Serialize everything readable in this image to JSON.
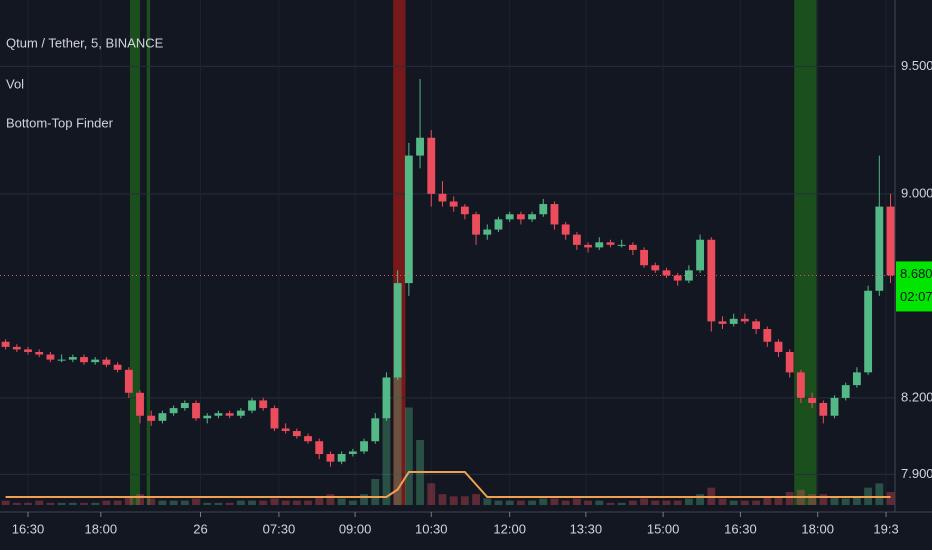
{
  "chart_data": {
    "type": "candlestick",
    "legend": [
      "Qtum / Tether, 5, BINANCE",
      "Vol",
      "Bottom-Top Finder"
    ],
    "up_color": "#53b987",
    "down_color": "#eb4d5c",
    "candles": [
      [
        8.42,
        8.43,
        8.39,
        8.4
      ],
      [
        8.4,
        8.41,
        8.38,
        8.39
      ],
      [
        8.39,
        8.4,
        8.37,
        8.38
      ],
      [
        8.38,
        8.39,
        8.36,
        8.37
      ],
      [
        8.37,
        8.38,
        8.34,
        8.35
      ],
      [
        8.35,
        8.37,
        8.34,
        8.35
      ],
      [
        8.35,
        8.37,
        8.34,
        8.36
      ],
      [
        8.36,
        8.37,
        8.33,
        8.34
      ],
      [
        8.34,
        8.36,
        8.33,
        8.35
      ],
      [
        8.35,
        8.36,
        8.32,
        8.33
      ],
      [
        8.33,
        8.34,
        8.3,
        8.31
      ],
      [
        8.31,
        8.32,
        8.2,
        8.22
      ],
      [
        8.22,
        8.23,
        8.1,
        8.13
      ],
      [
        8.13,
        8.15,
        8.09,
        8.11
      ],
      [
        8.11,
        8.15,
        8.1,
        8.14
      ],
      [
        8.14,
        8.17,
        8.13,
        8.16
      ],
      [
        8.16,
        8.19,
        8.15,
        8.18
      ],
      [
        8.18,
        8.19,
        8.11,
        8.12
      ],
      [
        8.12,
        8.14,
        8.1,
        8.13
      ],
      [
        8.13,
        8.15,
        8.12,
        8.14
      ],
      [
        8.14,
        8.15,
        8.12,
        8.13
      ],
      [
        8.13,
        8.16,
        8.12,
        8.15
      ],
      [
        8.15,
        8.2,
        8.14,
        8.19
      ],
      [
        8.19,
        8.2,
        8.15,
        8.16
      ],
      [
        8.16,
        8.17,
        8.07,
        8.08
      ],
      [
        8.08,
        8.1,
        8.06,
        8.07
      ],
      [
        8.07,
        8.08,
        8.04,
        8.05
      ],
      [
        8.05,
        8.06,
        8.02,
        8.03
      ],
      [
        8.03,
        8.04,
        7.96,
        7.98
      ],
      [
        7.98,
        7.99,
        7.93,
        7.95
      ],
      [
        7.95,
        7.99,
        7.94,
        7.98
      ],
      [
        7.98,
        8.0,
        7.97,
        7.99
      ],
      [
        7.99,
        8.04,
        7.98,
        8.03
      ],
      [
        8.03,
        8.14,
        8.02,
        8.12
      ],
      [
        8.12,
        8.3,
        8.11,
        8.28
      ],
      [
        8.28,
        8.7,
        8.27,
        8.65
      ],
      [
        8.65,
        9.2,
        8.6,
        9.15
      ],
      [
        9.15,
        9.45,
        9.1,
        9.22
      ],
      [
        9.22,
        9.25,
        8.95,
        9.0
      ],
      [
        9.0,
        9.05,
        8.95,
        8.97
      ],
      [
        8.97,
        8.99,
        8.93,
        8.95
      ],
      [
        8.95,
        8.96,
        8.9,
        8.92
      ],
      [
        8.92,
        8.93,
        8.8,
        8.84
      ],
      [
        8.84,
        8.88,
        8.82,
        8.86
      ],
      [
        8.86,
        8.91,
        8.85,
        8.9
      ],
      [
        8.9,
        8.93,
        8.89,
        8.92
      ],
      [
        8.92,
        8.93,
        8.88,
        8.9
      ],
      [
        8.9,
        8.93,
        8.89,
        8.92
      ],
      [
        8.92,
        8.98,
        8.91,
        8.96
      ],
      [
        8.96,
        8.97,
        8.86,
        8.88
      ],
      [
        8.88,
        8.89,
        8.82,
        8.84
      ],
      [
        8.84,
        8.85,
        8.78,
        8.8
      ],
      [
        8.8,
        8.81,
        8.77,
        8.79
      ],
      [
        8.79,
        8.83,
        8.78,
        8.81
      ],
      [
        8.81,
        8.82,
        8.79,
        8.8
      ],
      [
        8.8,
        8.82,
        8.79,
        8.8
      ],
      [
        8.8,
        8.81,
        8.76,
        8.78
      ],
      [
        8.78,
        8.79,
        8.71,
        8.72
      ],
      [
        8.72,
        8.73,
        8.69,
        8.7
      ],
      [
        8.7,
        8.71,
        8.67,
        8.68
      ],
      [
        8.68,
        8.69,
        8.64,
        8.66
      ],
      [
        8.66,
        8.72,
        8.65,
        8.7
      ],
      [
        8.7,
        8.84,
        8.69,
        8.82
      ],
      [
        8.82,
        8.83,
        8.46,
        8.5
      ],
      [
        8.5,
        8.52,
        8.47,
        8.49
      ],
      [
        8.49,
        8.53,
        8.48,
        8.51
      ],
      [
        8.51,
        8.53,
        8.49,
        8.5
      ],
      [
        8.5,
        8.51,
        8.45,
        8.47
      ],
      [
        8.47,
        8.48,
        8.4,
        8.42
      ],
      [
        8.42,
        8.43,
        8.36,
        8.38
      ],
      [
        8.38,
        8.39,
        8.28,
        8.3
      ],
      [
        8.3,
        8.31,
        8.18,
        8.2
      ],
      [
        8.2,
        8.22,
        8.16,
        8.18
      ],
      [
        8.18,
        8.19,
        8.1,
        8.13
      ],
      [
        8.13,
        8.21,
        8.12,
        8.2
      ],
      [
        8.2,
        8.26,
        8.19,
        8.25
      ],
      [
        8.25,
        8.32,
        8.24,
        8.3
      ],
      [
        8.3,
        8.64,
        8.29,
        8.62
      ],
      [
        8.62,
        9.15,
        8.6,
        8.95
      ],
      [
        8.95,
        9.0,
        8.65,
        8.68
      ]
    ],
    "volume": [
      2,
      1,
      1,
      2,
      1,
      1,
      1,
      1,
      1,
      2,
      2,
      4,
      5,
      3,
      2,
      2,
      2,
      3,
      1,
      1,
      1,
      2,
      2,
      2,
      3,
      2,
      2,
      2,
      4,
      5,
      3,
      2,
      5,
      12,
      40,
      60,
      45,
      30,
      10,
      5,
      4,
      4,
      5,
      3,
      2,
      2,
      2,
      2,
      3,
      3,
      2,
      3,
      2,
      2,
      1,
      1,
      2,
      3,
      2,
      2,
      2,
      3,
      5,
      8,
      3,
      2,
      2,
      2,
      4,
      4,
      6,
      7,
      5,
      5,
      4,
      3,
      4,
      8,
      10,
      6
    ],
    "indicator": [
      0,
      0,
      0,
      0,
      0,
      0,
      0,
      0,
      0,
      0,
      0,
      0,
      0,
      0,
      0,
      0,
      0,
      0,
      0,
      0,
      0,
      0,
      0,
      0,
      0,
      0,
      0,
      0,
      0,
      0,
      0,
      0,
      0,
      0,
      0,
      0.3,
      1,
      1,
      1,
      1,
      1,
      1,
      0.5,
      0,
      0,
      0,
      0,
      0,
      0,
      0,
      0,
      0,
      0,
      0,
      0,
      0,
      0,
      0,
      0,
      0,
      0,
      0,
      0,
      0,
      0,
      0,
      0,
      0,
      0,
      0,
      0,
      0,
      0,
      0,
      0,
      0,
      0,
      0,
      0,
      0
    ],
    "indicator_color": "#f0a050",
    "signals": [
      {
        "from": 11.1,
        "to": 12.0,
        "color": "#1d5a1d"
      },
      {
        "from": 12.6,
        "to": 12.9,
        "color": "#1d5a1d"
      },
      {
        "from": 34.6,
        "to": 35.7,
        "color": "#8a1a1a"
      },
      {
        "from": 70.4,
        "to": 72.4,
        "color": "#1d5a1d"
      }
    ],
    "xlim": [
      -0.5,
      79.4
    ],
    "xticks": [
      {
        "value": 2,
        "label": "16:30"
      },
      {
        "value": 8.5,
        "label": "18:00"
      },
      {
        "value": 17.4,
        "label": "26"
      },
      {
        "value": 24.4,
        "label": "07:30"
      },
      {
        "value": 31.2,
        "label": "09:00"
      },
      {
        "value": 38,
        "label": "10:30"
      },
      {
        "value": 45,
        "label": "12:00"
      },
      {
        "value": 51.8,
        "label": "13:30"
      },
      {
        "value": 58.7,
        "label": "15:00"
      },
      {
        "value": 65.6,
        "label": "16:30"
      },
      {
        "value": 72.5,
        "label": "18:00"
      },
      {
        "value": 78.6,
        "label": "19:3"
      }
    ],
    "ylim": [
      7.78,
      9.76
    ],
    "yticks": [
      {
        "value": 7.9,
        "label": "7.900"
      },
      {
        "value": 8.2,
        "label": "8.200"
      },
      {
        "value": 9.0,
        "label": "9.000"
      },
      {
        "value": 9.5,
        "label": "9.500"
      }
    ],
    "last_price": {
      "value": 8.68,
      "label": "8.680"
    },
    "countdown": "02:07",
    "grid": true
  }
}
